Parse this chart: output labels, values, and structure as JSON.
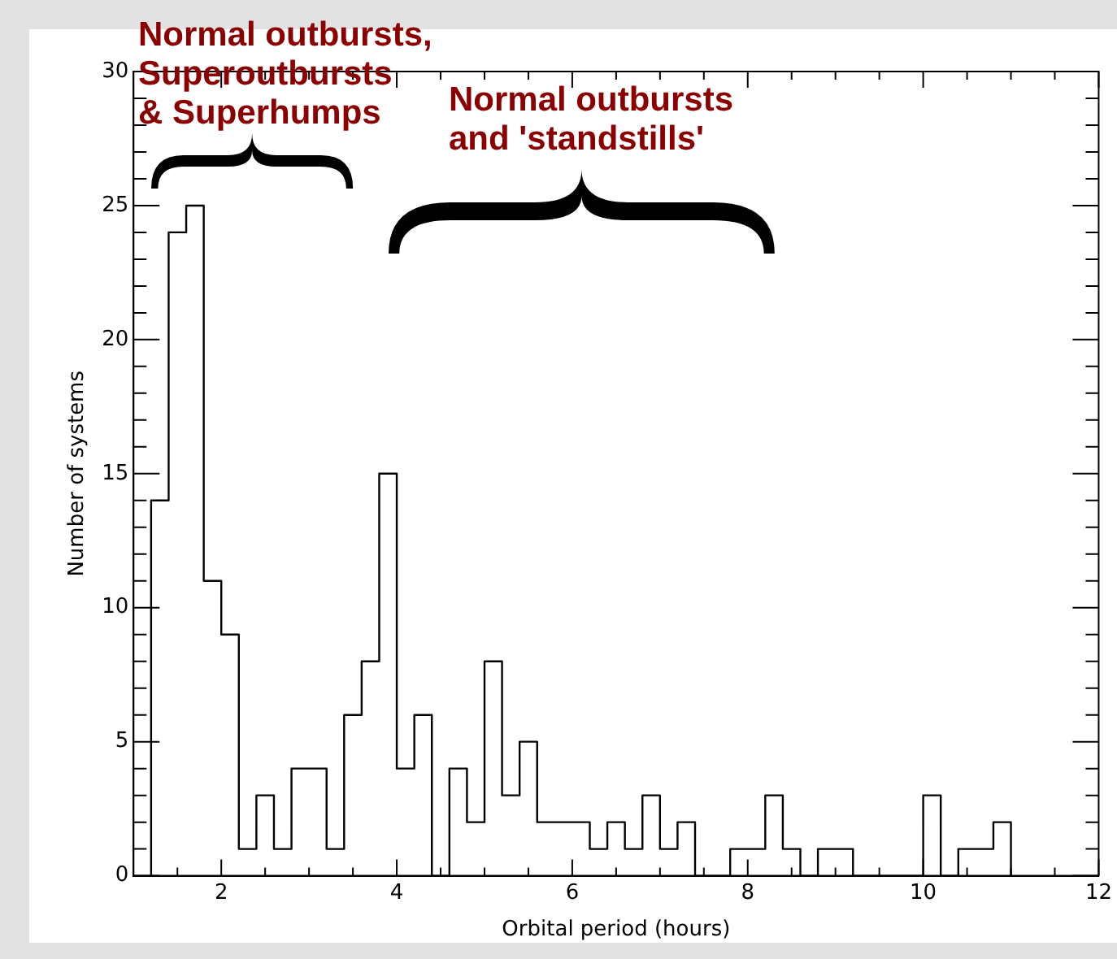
{
  "chart_data": {
    "type": "histogram",
    "xlabel": "Orbital period (hours)",
    "ylabel": "Number of systems",
    "annotations": [
      "Normal outbursts,\nSuperoutbursts\n& Superhumps",
      "Normal outbursts\nand 'standstills'"
    ],
    "bins": [
      1.2,
      1.4,
      1.6,
      1.8,
      2.0,
      2.2,
      2.4,
      2.6,
      2.8,
      3.0,
      3.2,
      3.4,
      3.6,
      3.8,
      4.0,
      4.2,
      4.4,
      4.6,
      4.8,
      5.0,
      5.2,
      5.4,
      5.6,
      5.8,
      6.0,
      6.2,
      6.4,
      6.6,
      6.8,
      7.0,
      7.2,
      7.4,
      7.6,
      7.8,
      8.0,
      8.2,
      8.4,
      8.6,
      8.8,
      9.0,
      9.2,
      9.4,
      9.6,
      9.8,
      10.0,
      10.2,
      10.4,
      10.6,
      10.8,
      11.0
    ],
    "values": [
      14,
      24,
      25,
      11,
      9,
      1,
      3,
      1,
      4,
      4,
      1,
      6,
      8,
      15,
      4,
      6,
      0,
      4,
      2,
      8,
      3,
      5,
      2,
      2,
      2,
      1,
      2,
      1,
      3,
      1,
      2,
      0,
      0,
      1,
      1,
      3,
      1,
      0,
      1,
      1,
      0,
      0,
      0,
      0,
      3,
      0,
      1,
      1,
      2
    ],
    "color": "#000000",
    "xlim": [
      1,
      12
    ],
    "ylim": [
      0,
      30
    ],
    "xticks": [
      {
        "value": 1.5,
        "label": null
      },
      2,
      {
        "value": 2.5,
        "label": null
      },
      {
        "value": 3,
        "label": null
      },
      {
        "value": 3.5,
        "label": null
      },
      4,
      {
        "value": 4.5,
        "label": null
      },
      {
        "value": 5,
        "label": null
      },
      {
        "value": 5.5,
        "label": null
      },
      6,
      {
        "value": 6.5,
        "label": null
      },
      {
        "value": 7,
        "label": null
      },
      {
        "value": 7.5,
        "label": null
      },
      8,
      {
        "value": 8.5,
        "label": null
      },
      {
        "value": 9,
        "label": null
      },
      {
        "value": 9.5,
        "label": null
      },
      10,
      {
        "value": 10.5,
        "label": null
      },
      {
        "value": 11,
        "label": null
      },
      {
        "value": 11.5,
        "label": null
      },
      12
    ],
    "yticks": [
      0,
      {
        "value": 1,
        "label": null
      },
      {
        "value": 2,
        "label": null
      },
      {
        "value": 3,
        "label": null
      },
      {
        "value": 4,
        "label": null
      },
      5,
      {
        "value": 6,
        "label": null
      },
      {
        "value": 7,
        "label": null
      },
      {
        "value": 8,
        "label": null
      },
      {
        "value": 9,
        "label": null
      },
      10,
      {
        "value": 11,
        "label": null
      },
      {
        "value": 12,
        "label": null
      },
      {
        "value": 13,
        "label": null
      },
      {
        "value": 14,
        "label": null
      },
      15,
      {
        "value": 16,
        "label": null
      },
      {
        "value": 17,
        "label": null
      },
      {
        "value": 18,
        "label": null
      },
      {
        "value": 19,
        "label": null
      },
      20,
      {
        "value": 21,
        "label": null
      },
      {
        "value": 22,
        "label": null
      },
      {
        "value": 23,
        "label": null
      },
      {
        "value": 24,
        "label": null
      },
      25,
      {
        "value": 26,
        "label": null
      },
      {
        "value": 27,
        "label": null
      },
      {
        "value": 28,
        "label": null
      },
      {
        "value": 29,
        "label": null
      },
      30
    ],
    "grid": false,
    "legend": false
  }
}
